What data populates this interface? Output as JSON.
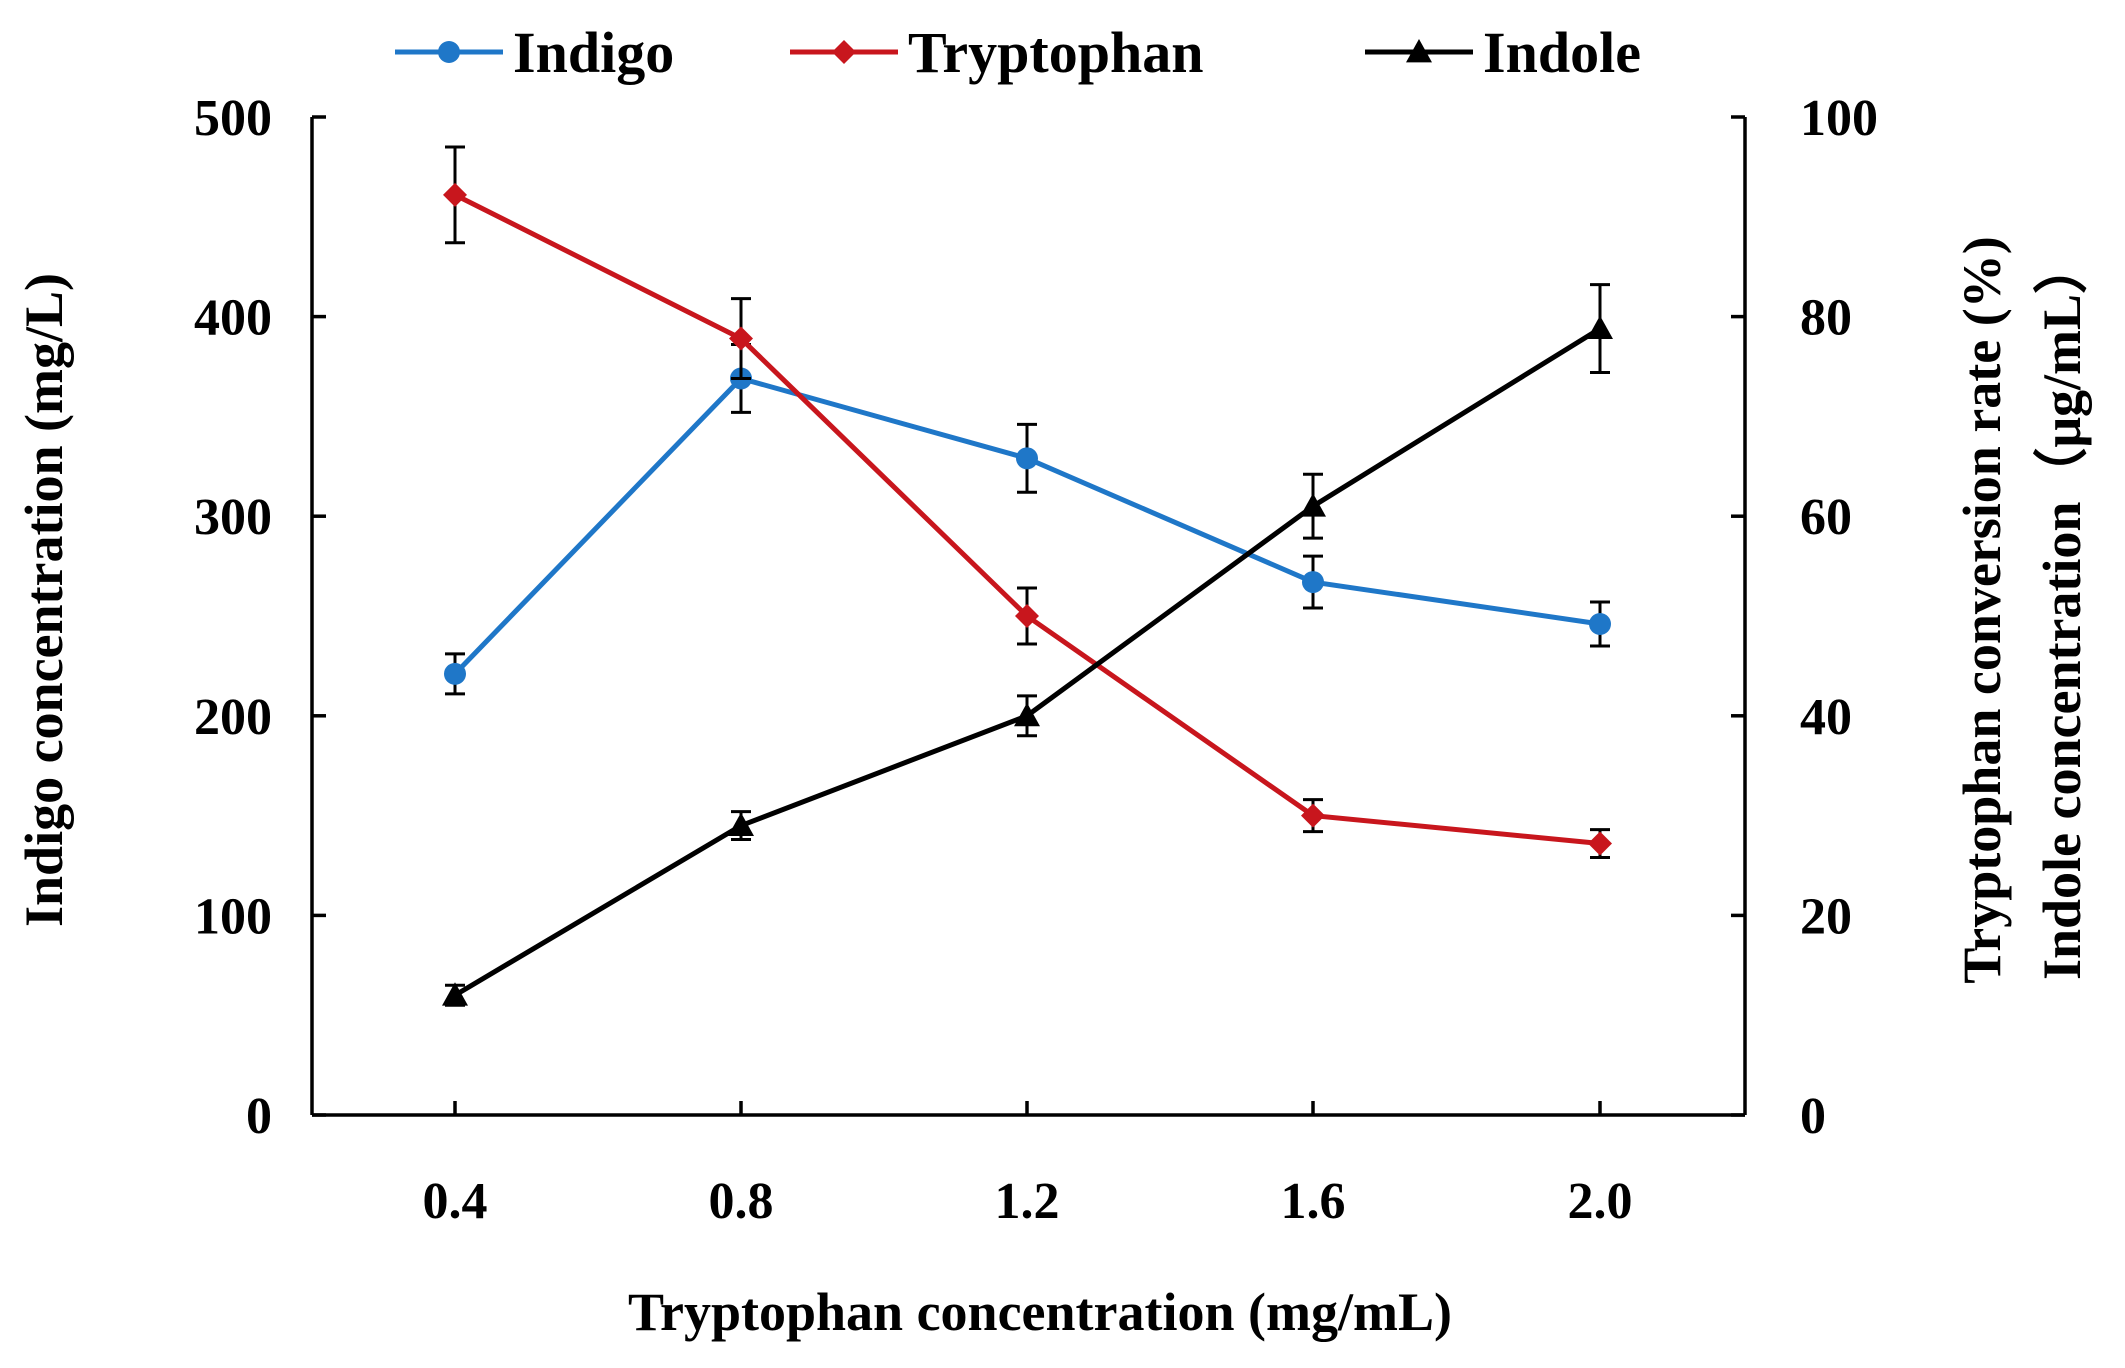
{
  "chart_data": {
    "type": "line",
    "title": "",
    "xlabel": "Tryptophan concentration (mg/mL)",
    "ylabel_left": "Indigo concentration (mg/L)",
    "ylabel_right": [
      "Tryptophan conversion rate (%)",
      "Indole concentration（μg/mL）"
    ],
    "x": [
      0.4,
      0.8,
      1.2,
      1.6,
      2.0
    ],
    "x_tick_labels": [
      "0.4",
      "0.8",
      "1.2",
      "1.6",
      "2.0"
    ],
    "ylim_left": [
      0,
      500
    ],
    "y_left_ticks": [
      0,
      100,
      200,
      300,
      400,
      500
    ],
    "y_left_tick_labels": [
      "0",
      "100",
      "200",
      "300",
      "400",
      "500"
    ],
    "ylim_right": [
      0,
      100
    ],
    "y_right_ticks": [
      0,
      20,
      40,
      60,
      80,
      100
    ],
    "y_right_tick_labels": [
      "0",
      "20",
      "40",
      "60",
      "80",
      "100"
    ],
    "legend_position": "top",
    "grid": false,
    "series": [
      {
        "name": "Indigo",
        "axis": "left",
        "color": "#1f77c8",
        "marker": "circle",
        "values": [
          221,
          369,
          329,
          267,
          246
        ],
        "errors": [
          10,
          17,
          17,
          13,
          11
        ]
      },
      {
        "name": "Tryptophan",
        "axis": "right",
        "color": "#c8161d",
        "marker": "diamond",
        "values": [
          92.2,
          77.8,
          50.0,
          30.0,
          27.2
        ],
        "errors": [
          4.8,
          4.0,
          2.8,
          1.6,
          1.4
        ]
      },
      {
        "name": "Indole",
        "axis": "right",
        "color": "#000000",
        "marker": "triangle",
        "values": [
          12.0,
          29.0,
          40.0,
          61.0,
          78.8
        ],
        "errors": [
          1.0,
          1.4,
          2.0,
          3.2,
          4.4
        ]
      }
    ]
  }
}
